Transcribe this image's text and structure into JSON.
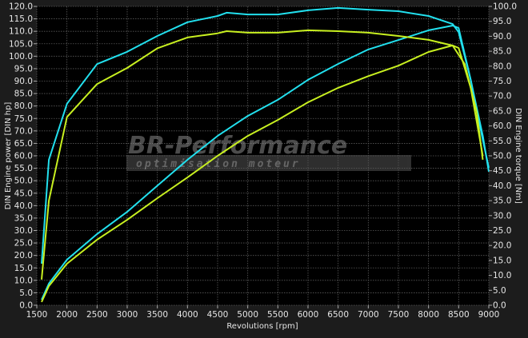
{
  "chart_data": {
    "type": "line",
    "title": "",
    "xlabel": "Revolutions [rpm]",
    "ylabel_left": "DIN Engine power [DIN hp]",
    "ylabel_right": "DIN Engine torque [Nm]",
    "xlim": [
      1500,
      9000
    ],
    "ylim_left": [
      0,
      120
    ],
    "ylim_right": [
      0,
      100
    ],
    "grid": true,
    "x_ticks": [
      "1500",
      "2000",
      "2500",
      "3000",
      "3500",
      "4000",
      "4500",
      "5000",
      "5500",
      "6000",
      "6500",
      "7000",
      "7500",
      "8000",
      "8500",
      "9000"
    ],
    "y_left_ticks": [
      "0.0",
      "5.0",
      "10.0",
      "15.0",
      "20.0",
      "25.0",
      "30.0",
      "35.0",
      "40.0",
      "45.0",
      "50.0",
      "55.0",
      "60.0",
      "65.0",
      "70.0",
      "75.0",
      "80.0",
      "85.0",
      "90.0",
      "95.0",
      "100.0",
      "105.0",
      "110.0",
      "115.0",
      "120.0"
    ],
    "y_right_ticks": [
      "0.0",
      "5.0",
      "10.0",
      "15.0",
      "20.0",
      "25.0",
      "30.0",
      "35.0",
      "40.0",
      "45.0",
      "50.0",
      "55.0",
      "60.0",
      "65.0",
      "70.0",
      "75.0",
      "80.0",
      "85.0",
      "90.0",
      "95.0",
      "100.0"
    ],
    "series": [
      {
        "axis": "left",
        "color": "#22e0ee",
        "x": [
          1580,
          1700,
          2000,
          2500,
          3000,
          3500,
          4000,
          4500,
          5000,
          5500,
          6000,
          6500,
          7000,
          7500,
          8000,
          8400,
          8500,
          8700,
          8900,
          9000
        ],
        "y": [
          2.2,
          8.7,
          18.3,
          28.6,
          37.5,
          48.0,
          58.4,
          68.0,
          76.0,
          82.5,
          90.5,
          96.9,
          102.7,
          106.5,
          110.4,
          112.3,
          111.3,
          90.5,
          66.4,
          55.2
        ]
      },
      {
        "axis": "left",
        "color": "#c8f020",
        "x": [
          1580,
          1700,
          2000,
          2500,
          3000,
          3500,
          4000,
          4500,
          5000,
          5500,
          6000,
          6500,
          7000,
          7500,
          8000,
          8400,
          8500,
          8700,
          8900
        ],
        "y": [
          1.3,
          7.7,
          16.7,
          26.3,
          34.3,
          43.0,
          51.3,
          60.0,
          68.0,
          74.4,
          81.5,
          87.3,
          92.0,
          96.2,
          101.7,
          104.3,
          103.3,
          87.3,
          60.0
        ]
      },
      {
        "axis": "right",
        "color": "#22e0ee",
        "x": [
          1580,
          1700,
          2000,
          2500,
          3000,
          3500,
          4000,
          4500,
          4650,
          5000,
          5500,
          6000,
          6500,
          7000,
          7500,
          8000,
          8400,
          8500,
          8700,
          8900,
          9000
        ],
        "y": [
          13.9,
          48.7,
          67.4,
          80.7,
          84.8,
          90.1,
          94.7,
          96.8,
          97.9,
          97.3,
          97.3,
          98.7,
          99.5,
          98.9,
          98.4,
          96.8,
          94.1,
          91.4,
          75.4,
          56.7,
          44.7
        ]
      },
      {
        "axis": "right",
        "color": "#c8f020",
        "x": [
          1580,
          1700,
          2000,
          2500,
          3000,
          3500,
          4000,
          4500,
          4650,
          5000,
          5500,
          6000,
          6500,
          7000,
          7500,
          8000,
          8400,
          8600,
          8800,
          8900
        ],
        "y": [
          8.6,
          35.0,
          63.0,
          74.0,
          79.4,
          86.0,
          89.6,
          91.0,
          91.7,
          91.2,
          91.2,
          92.0,
          91.7,
          91.2,
          90.1,
          88.8,
          86.9,
          80.7,
          64.7,
          48.7
        ]
      }
    ]
  },
  "watermark": {
    "brand": "BR-Performance",
    "tagline": "optimisation moteur"
  }
}
